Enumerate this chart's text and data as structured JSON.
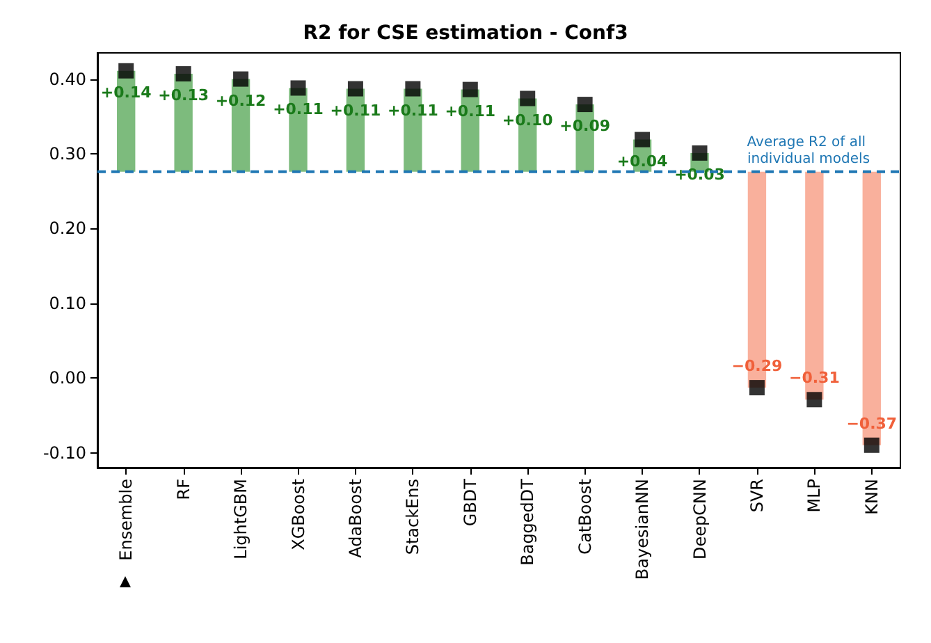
{
  "chart_data": {
    "type": "bar",
    "title": "R2 for CSE estimation - Conf3",
    "categories": [
      "Ensemble",
      "RF",
      "LightGBM",
      "XGBoost",
      "AdaBoost",
      "StackEns",
      "GBDT",
      "BaggedDT",
      "CatBoost",
      "BayesianNN",
      "DeepCNN",
      "SVR",
      "MLP",
      "KNN"
    ],
    "series": [
      {
        "values": [
          0.135,
          0.131,
          0.124,
          0.112,
          0.111,
          0.111,
          0.11,
          0.098,
          0.09,
          0.043,
          0.025,
          -0.289,
          -0.305,
          -0.366
        ],
        "base": [
          0.276,
          0.276,
          0.276,
          0.276,
          0.276,
          0.276,
          0.276,
          0.276,
          0.276,
          0.276,
          0.276,
          0.276,
          0.276,
          0.276
        ],
        "colors": [
          "#7dbb7d",
          "#7dbb7d",
          "#7dbb7d",
          "#7dbb7d",
          "#7dbb7d",
          "#7dbb7d",
          "#7dbb7d",
          "#7dbb7d",
          "#7dbb7d",
          "#7dbb7d",
          "#7dbb7d",
          "#f9b09c",
          "#f9b09c",
          "#f9b09c"
        ],
        "value_labels": [
          "+0.14",
          "+0.13",
          "+0.12",
          "+0.11",
          "+0.11",
          "+0.11",
          "+0.11",
          "+0.10",
          "+0.09",
          "+0.04",
          "+0.03",
          "−0.29",
          "−0.31",
          "−0.37"
        ]
      },
      {
        "type": "scatter",
        "marker": "square",
        "color": "#000000",
        "x": [
          "Ensemble",
          "RF",
          "LightGBM",
          "XGBoost",
          "AdaBoost",
          "StackEns",
          "GBDT",
          "BaggedDT",
          "CatBoost",
          "BayesianNN",
          "DeepCNN",
          "SVR",
          "MLP",
          "KNN"
        ],
        "values": [
          0.411,
          0.407,
          0.4,
          0.388,
          0.387,
          0.387,
          0.386,
          0.374,
          0.366,
          0.319,
          0.301,
          -0.013,
          -0.029,
          -0.09
        ]
      }
    ],
    "ylim": [
      -0.12,
      0.435
    ],
    "yticks": [
      {
        "value": -0.1,
        "label": "-0.10"
      },
      {
        "value": 0,
        "label": "0.00"
      },
      {
        "value": 0.1,
        "label": "0.10"
      },
      {
        "value": 0.2,
        "label": "0.20"
      },
      {
        "value": 0.3,
        "label": "0.30"
      },
      {
        "value": 0.4,
        "label": "0.40"
      }
    ],
    "ref_lines": [
      {
        "axis": "y",
        "value": 0.276,
        "label": "Average R2 of all individual models",
        "color": "#1f77b4",
        "line_style": "dashed"
      }
    ],
    "grid": false
  }
}
